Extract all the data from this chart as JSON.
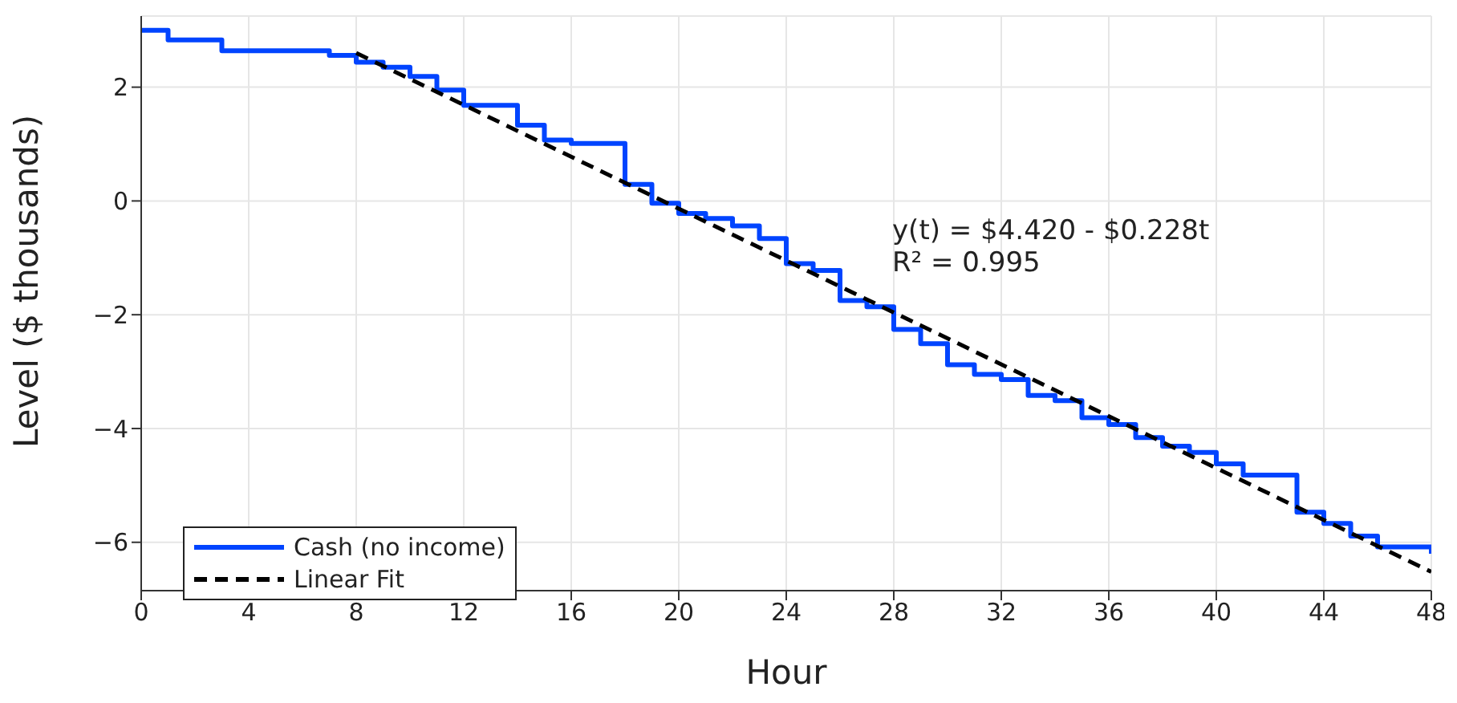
{
  "chart_data": {
    "type": "step",
    "xlabel": "Hour",
    "ylabel": "Level ($ thousands)",
    "xlim": [
      0,
      48
    ],
    "xticks": [
      0,
      4,
      8,
      12,
      16,
      20,
      24,
      28,
      32,
      36,
      40,
      44,
      48
    ],
    "ylim": [
      -6.85,
      3.25
    ],
    "yticks": [
      -6,
      -4,
      -2,
      0,
      2
    ],
    "grid": true,
    "legend": "bottom left",
    "annotations": [
      "y(t) = $4.420 - $0.228t",
      "R² = 0.995"
    ],
    "series": [
      {
        "name": "Cash (no income)",
        "type": "step",
        "color": "#0044ff",
        "line_style": "solid",
        "x": [
          0,
          1,
          2,
          3,
          4,
          5,
          6,
          7,
          8,
          9,
          10,
          11,
          12,
          13,
          14,
          15,
          16,
          17,
          18,
          19,
          20,
          21,
          22,
          23,
          24,
          25,
          26,
          27,
          28,
          29,
          30,
          31,
          32,
          33,
          34,
          35,
          36,
          37,
          38,
          39,
          40,
          41,
          42,
          43,
          44,
          45,
          46,
          47,
          48
        ],
        "values": [
          3.0,
          2.83,
          2.83,
          2.64,
          2.64,
          2.64,
          2.64,
          2.56,
          2.44,
          2.35,
          2.19,
          1.95,
          1.68,
          1.68,
          1.33,
          1.07,
          1.01,
          1.01,
          0.29,
          -0.04,
          -0.22,
          -0.31,
          -0.44,
          -0.66,
          -1.1,
          -1.22,
          -1.75,
          -1.86,
          -2.26,
          -2.51,
          -2.88,
          -3.05,
          -3.14,
          -3.42,
          -3.51,
          -3.81,
          -3.93,
          -4.16,
          -4.31,
          -4.42,
          -4.62,
          -4.82,
          -4.82,
          -5.47,
          -5.67,
          -5.89,
          -6.08,
          -6.08,
          -6.2
        ]
      },
      {
        "name": "Linear Fit",
        "type": "line",
        "color": "#000000",
        "line_style": "dashed",
        "x": [
          8,
          48
        ],
        "values": [
          2.6,
          -6.52
        ]
      }
    ]
  }
}
